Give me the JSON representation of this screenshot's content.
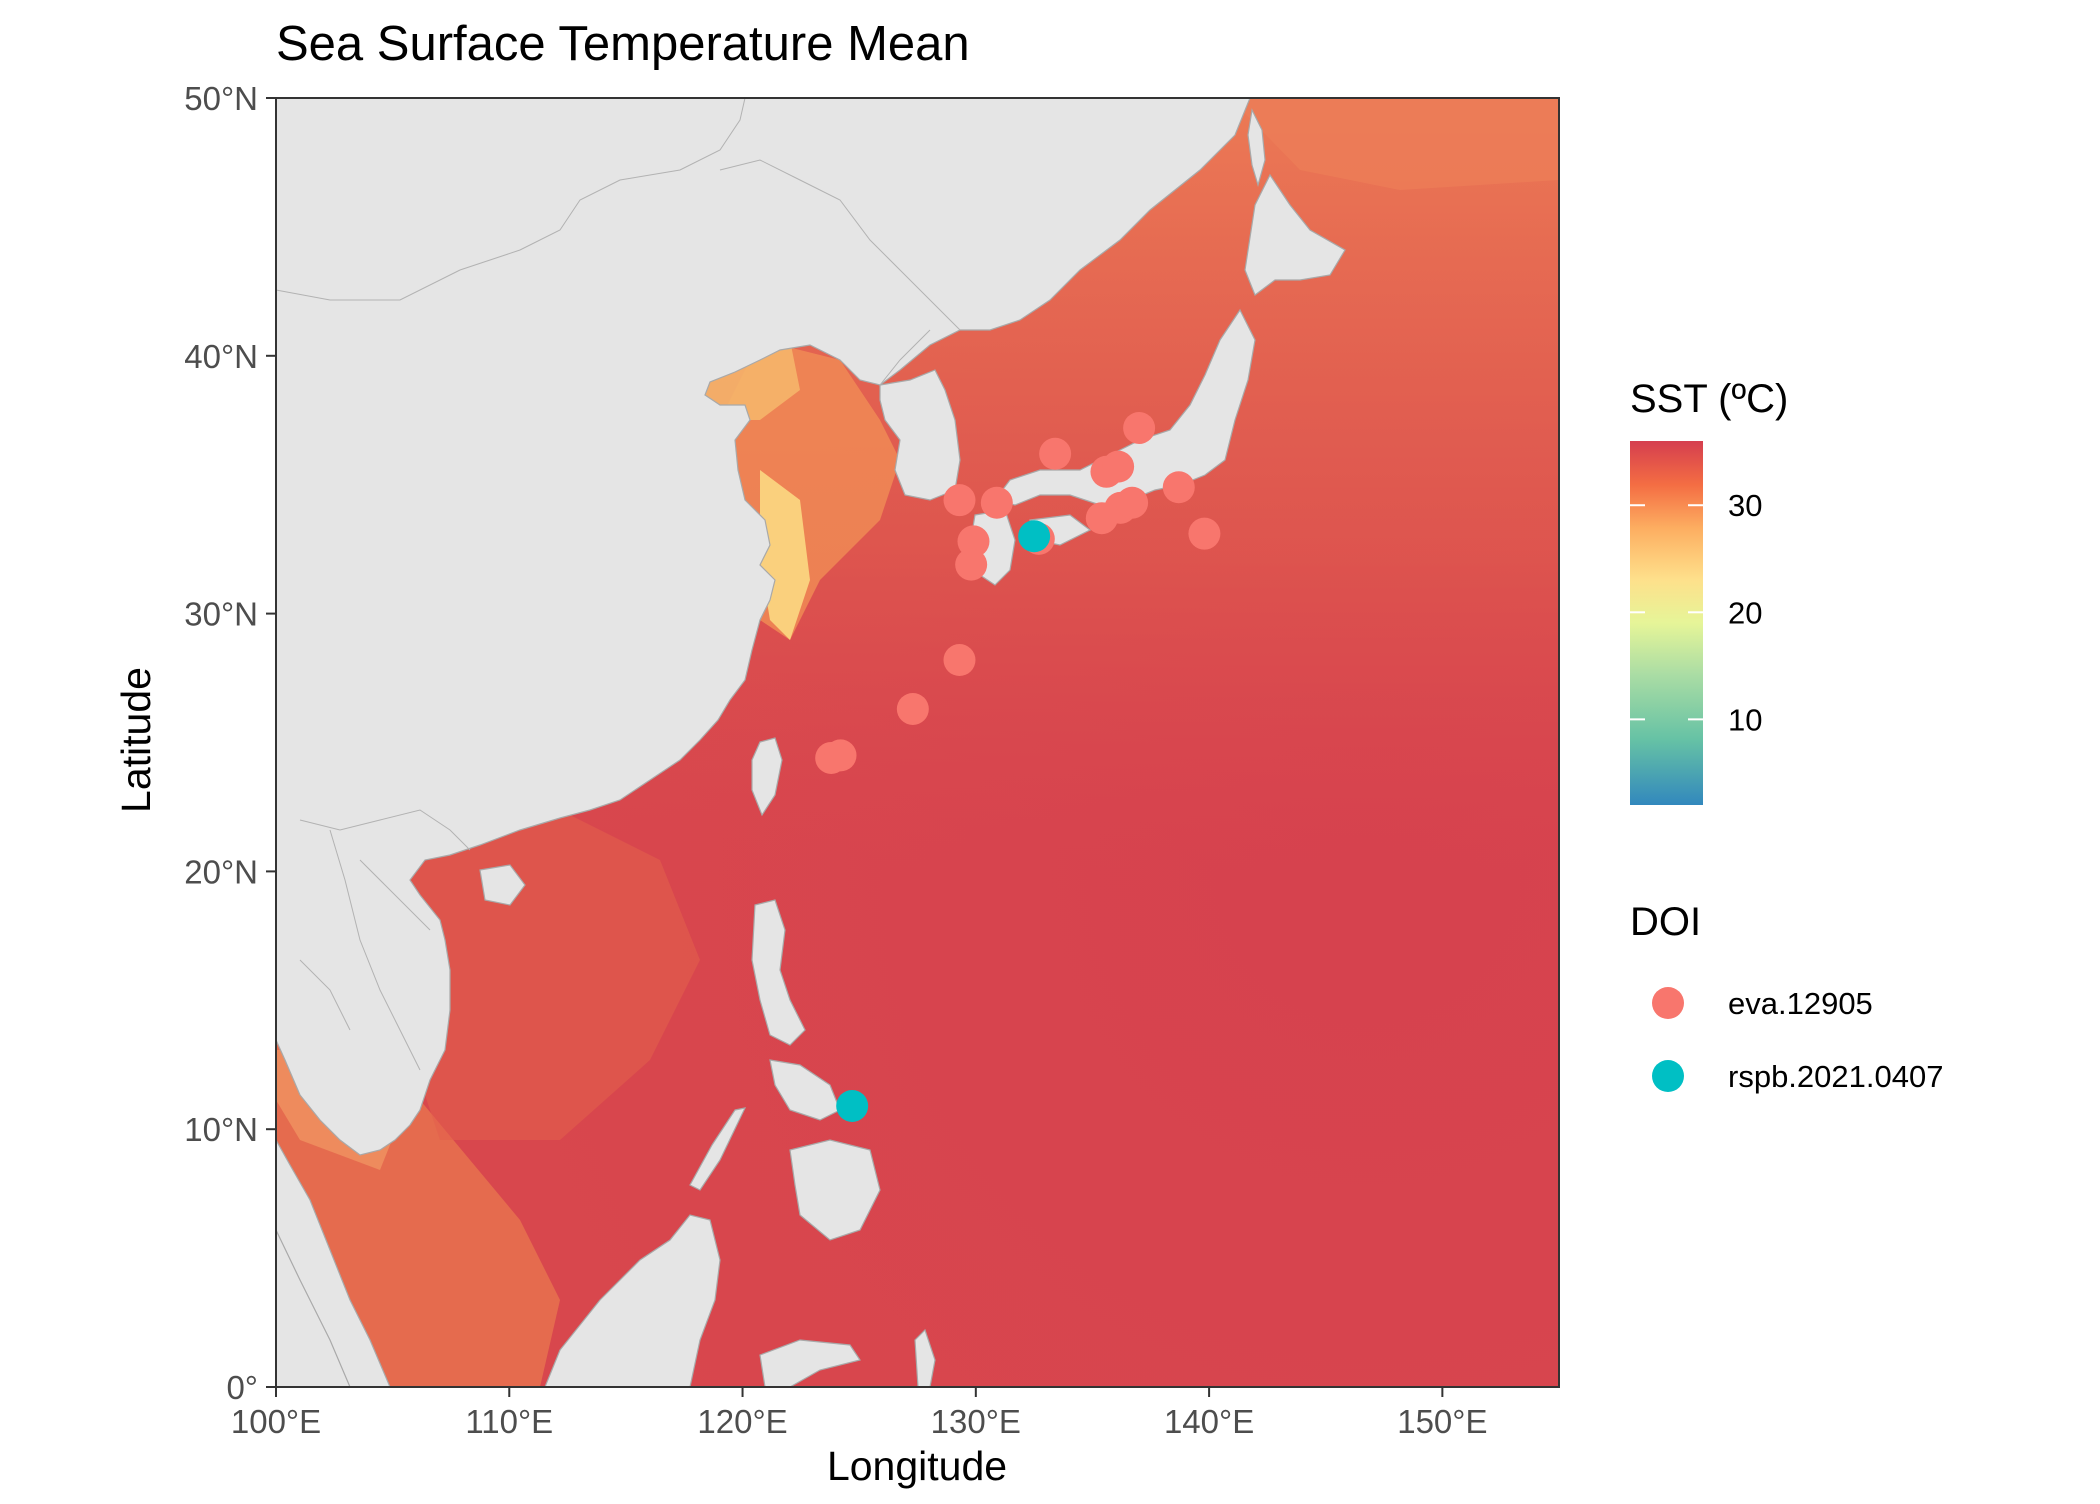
{
  "title": "Sea Surface Temperature Mean",
  "axes": {
    "x_label": "Longitude",
    "y_label": "Latitude",
    "x_ticks": [
      "100°E",
      "110°E",
      "120°E",
      "130°E",
      "140°E",
      "150°E"
    ],
    "y_ticks": [
      "0°",
      "10°N",
      "20°N",
      "30°N",
      "40°N",
      "50°N"
    ]
  },
  "legend_sst": {
    "title": "SST (ºC)",
    "breaks": [
      "30",
      "20",
      "10"
    ]
  },
  "legend_doi": {
    "title": "DOI",
    "items": [
      {
        "label": "eva.12905",
        "color": "#F8766D"
      },
      {
        "label": "rspb.2021.0407",
        "color": "#00BFC4"
      }
    ]
  },
  "colors": {
    "land": "#e5e5e5",
    "ocean": "#d8474d",
    "eva": "#F8766D",
    "rspb": "#00BFC4"
  },
  "chart_data": {
    "type": "scatter",
    "title": "Sea Surface Temperature Mean",
    "xlabel": "Longitude",
    "ylabel": "Latitude",
    "xlim": [
      100,
      155
    ],
    "ylim": [
      0,
      50
    ],
    "color_scale": {
      "name": "SST (ºC)",
      "range": [
        2,
        36
      ],
      "palette": "Spectral"
    },
    "series": [
      {
        "name": "eva.12905",
        "color": "#F8766D",
        "points": [
          {
            "x": 129.3,
            "y": 34.4
          },
          {
            "x": 130.9,
            "y": 34.3
          },
          {
            "x": 133.4,
            "y": 36.2
          },
          {
            "x": 137.0,
            "y": 37.2
          },
          {
            "x": 135.6,
            "y": 35.5
          },
          {
            "x": 136.1,
            "y": 35.7
          },
          {
            "x": 138.7,
            "y": 34.9
          },
          {
            "x": 135.4,
            "y": 33.7
          },
          {
            "x": 136.2,
            "y": 34.1
          },
          {
            "x": 136.7,
            "y": 34.3
          },
          {
            "x": 139.8,
            "y": 33.1
          },
          {
            "x": 129.9,
            "y": 32.8
          },
          {
            "x": 129.8,
            "y": 31.9
          },
          {
            "x": 132.7,
            "y": 32.9
          },
          {
            "x": 129.3,
            "y": 28.2
          },
          {
            "x": 127.3,
            "y": 26.3
          },
          {
            "x": 123.8,
            "y": 24.4
          },
          {
            "x": 124.2,
            "y": 24.5
          }
        ]
      },
      {
        "name": "rspb.2021.0407",
        "color": "#00BFC4",
        "points": [
          {
            "x": 132.5,
            "y": 33.0
          },
          {
            "x": 124.7,
            "y": 10.9
          }
        ]
      }
    ]
  }
}
